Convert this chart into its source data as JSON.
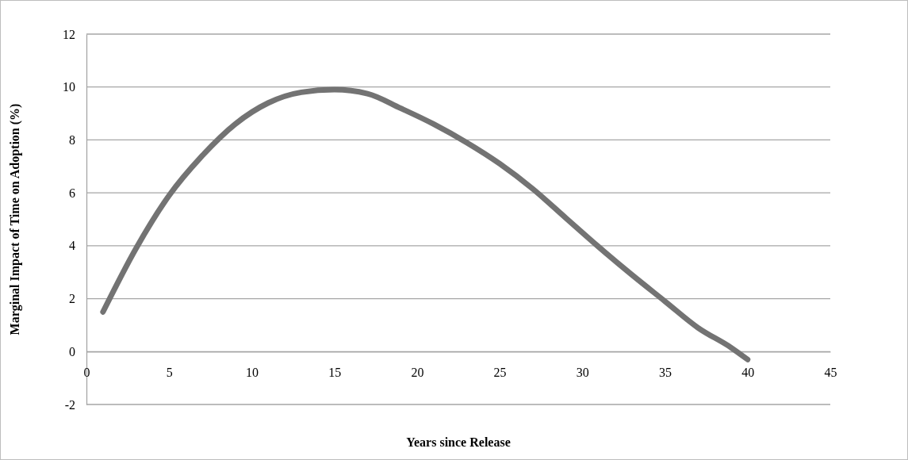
{
  "chart_data": {
    "type": "line",
    "xlabel": "Years since Release",
    "ylabel": "Marginal Impact of Time on Adoption (%)",
    "x": [
      1,
      3,
      5,
      7,
      9,
      11,
      13,
      15,
      17,
      19,
      21,
      23,
      25,
      27,
      29,
      31,
      33,
      35,
      37,
      39,
      40
    ],
    "series": [
      {
        "color": "#737373",
        "values": [
          1.5,
          3.9,
          5.9,
          7.4,
          8.6,
          9.4,
          9.8,
          9.9,
          9.75,
          9.2,
          8.6,
          7.9,
          7.1,
          6.15,
          5.05,
          3.95,
          2.9,
          1.9,
          0.9,
          0.15,
          -0.3
        ]
      }
    ],
    "xlim": [
      0,
      45
    ],
    "xticks": [
      0,
      5,
      10,
      15,
      20,
      25,
      30,
      35,
      40,
      45
    ],
    "ylim": [
      -2,
      12
    ],
    "yticks": [
      -2,
      0,
      2,
      4,
      6,
      8,
      10,
      12
    ],
    "grid": "y",
    "marker": "none",
    "line_style": "solid"
  }
}
